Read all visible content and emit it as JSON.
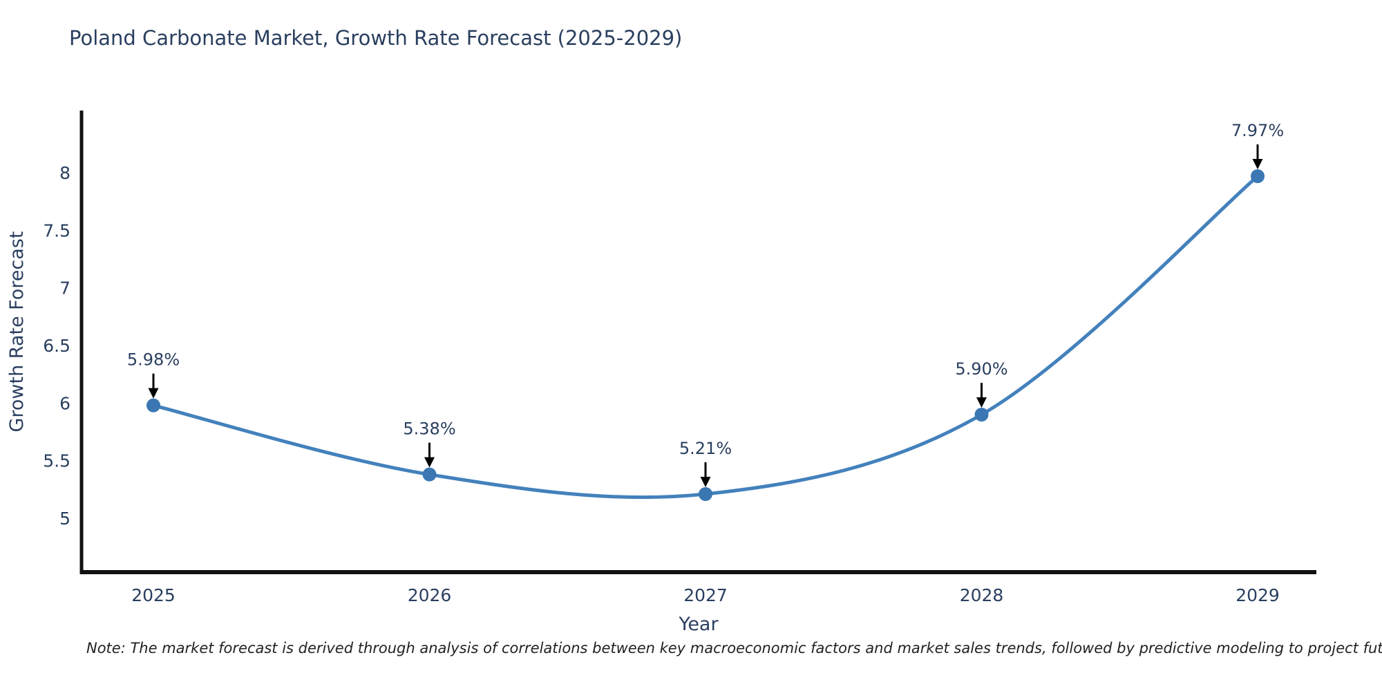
{
  "page": {
    "note": "Note: The market forecast is derived through analysis of correlations between key macroeconomic factors and market sales trends, followed by predictive modeling to project future sales"
  },
  "chart_data": {
    "type": "line",
    "title": "Poland Carbonate Market, Growth Rate Forecast (2025-2029)",
    "xlabel": "Year",
    "ylabel": "Growth Rate Forecast",
    "x": [
      2025,
      2026,
      2027,
      2028,
      2029
    ],
    "values": [
      5.98,
      5.38,
      5.21,
      5.9,
      7.97
    ],
    "point_labels": [
      "5.98%",
      "5.38%",
      "5.21%",
      "5.90%",
      "7.97%"
    ],
    "xtick_labels": [
      "2025",
      "2026",
      "2027",
      "2028",
      "2029"
    ],
    "yticks": [
      5,
      5.5,
      6,
      6.5,
      7,
      7.5,
      8
    ],
    "ytick_labels": [
      "5",
      "5.5",
      "6",
      "6.5",
      "7",
      "7.5",
      "8"
    ],
    "ylim": [
      4.52,
      8.55
    ],
    "line_shape": "spline",
    "grid": false,
    "legend": false,
    "colors": {
      "line": "#4381bc",
      "marker": "#3a77b3",
      "annotation_arrow": "#000000",
      "axis_line": "#111111",
      "text": "#2a3f5f"
    }
  }
}
